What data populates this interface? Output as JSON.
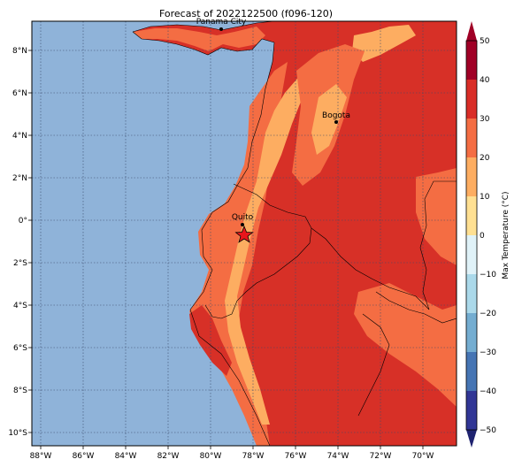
{
  "title": "Forecast of 2022122500 (f096-120)",
  "lon_labels": [
    "88°W",
    "86°W",
    "84°W",
    "82°W",
    "80°W",
    "78°W",
    "76°W",
    "74°W",
    "72°W",
    "70°W"
  ],
  "lat_labels": [
    "8°N",
    "6°N",
    "4°N",
    "2°N",
    "0°",
    "2°S",
    "4°S",
    "6°S",
    "8°S",
    "10°S"
  ],
  "cities": [
    {
      "name": "Panama City",
      "lon": -79.5,
      "lat": 9.0
    },
    {
      "name": "Bogota",
      "lon": -74.1,
      "lat": 4.6
    },
    {
      "name": "Quito",
      "lon": -78.5,
      "lat": -0.2
    }
  ],
  "marker": {
    "type": "star",
    "lon": -78.5,
    "lat": -0.7,
    "color": "#e8161b"
  },
  "colorbar": {
    "label": "Max Temperature (°C)",
    "ticks": [
      "50",
      "40",
      "30",
      "20",
      "10",
      "0",
      "−10",
      "−20",
      "−30",
      "−40",
      "−50"
    ],
    "colors": [
      "#a00026",
      "#d92d27",
      "#f46d43",
      "#fdad61",
      "#ffe092",
      "#fffed0",
      "#e0f2f8",
      "#abd9ea",
      "#74add1",
      "#4675b4",
      "#313695"
    ]
  },
  "colors": {
    "ocean": "#8fb3d9",
    "land_hot": "#d73027"
  }
}
